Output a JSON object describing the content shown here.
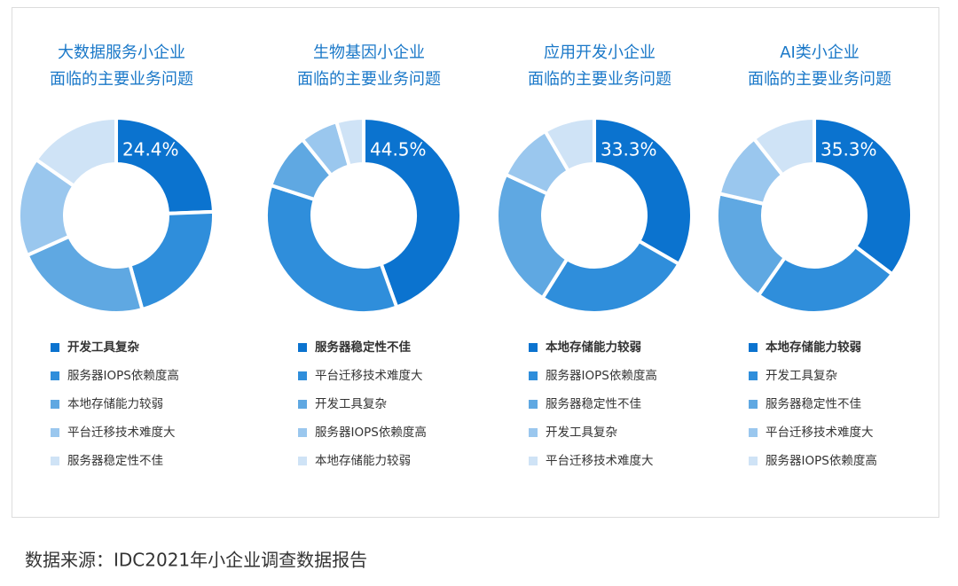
{
  "chart_data": [
    {
      "type": "donut",
      "title": [
        "大数据服务小企业",
        "面临的主要业务问题"
      ],
      "categories": [
        "开发工具复杂",
        "服务器IOPS依赖度高",
        "本地存储能力较弱",
        "平台迁移技术难度大",
        "服务器稳定性不佳"
      ],
      "values": [
        24.4,
        21.3,
        22.6,
        16.4,
        15.3
      ],
      "value_labels": [
        "24.4%",
        null,
        null,
        null,
        null
      ],
      "colors": [
        "#0b73cf",
        "#2f8edb",
        "#5fa8e2",
        "#9ac7ee",
        "#cfe3f6"
      ]
    },
    {
      "type": "donut",
      "title": [
        "生物基因小企业",
        "面临的主要业务问题"
      ],
      "categories": [
        "服务器稳定性不佳",
        "平台迁移技术难度大",
        "开发工具复杂",
        "服务器IOPS依赖度高",
        "本地存储能力较弱"
      ],
      "values": [
        44.5,
        35.5,
        9.2,
        6.3,
        4.5
      ],
      "value_labels": [
        "44.5%",
        null,
        null,
        null,
        null
      ],
      "colors": [
        "#0b73cf",
        "#2f8edb",
        "#5fa8e2",
        "#9ac7ee",
        "#cfe3f6"
      ]
    },
    {
      "type": "donut",
      "title": [
        "应用开发小企业",
        "面临的主要业务问题"
      ],
      "categories": [
        "本地存储能力较弱",
        "服务器IOPS依赖度高",
        "服务器稳定性不佳",
        "开发工具复杂",
        "平台迁移技术难度大"
      ],
      "values": [
        33.3,
        25.6,
        23.0,
        9.7,
        8.4
      ],
      "value_labels": [
        "33.3%",
        null,
        null,
        null,
        null
      ],
      "colors": [
        "#0b73cf",
        "#2f8edb",
        "#5fa8e2",
        "#9ac7ee",
        "#cfe3f6"
      ]
    },
    {
      "type": "donut",
      "title": [
        "AI类小企业",
        "面临的主要业务问题"
      ],
      "categories": [
        "本地存储能力较弱",
        "开发工具复杂",
        "服务器稳定性不佳",
        "平台迁移技术难度大",
        "服务器IOPS依赖度高"
      ],
      "values": [
        35.3,
        24.4,
        18.9,
        10.8,
        10.6
      ],
      "value_labels": [
        "35.3%",
        null,
        null,
        null,
        null
      ],
      "colors": [
        "#0b73cf",
        "#2f8edb",
        "#5fa8e2",
        "#9ac7ee",
        "#cfe3f6"
      ]
    }
  ],
  "source": "数据来源：IDC2021年小企业调查数据报告"
}
